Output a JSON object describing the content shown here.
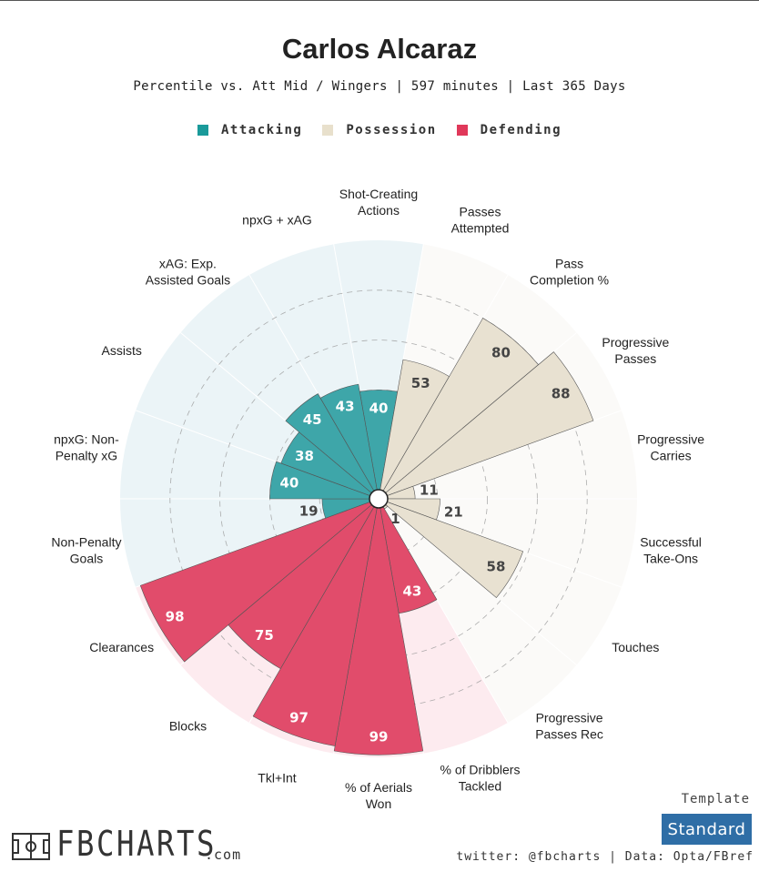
{
  "header": {
    "title": "Carlos Alcaraz",
    "subtitle": "Percentile vs. Att Mid / Wingers | 597 minutes | Last 365 Days"
  },
  "legend": [
    {
      "label": "Attacking",
      "color": "#1a9a9a"
    },
    {
      "label": "Possession",
      "color": "#e8e0cc"
    },
    {
      "label": "Defending",
      "color": "#e0385a"
    }
  ],
  "chart_data": {
    "type": "polar_bar",
    "scale_max": 100,
    "grid_rings": [
      20,
      40,
      60,
      80,
      100
    ],
    "series": [
      {
        "category": "Shot-Creating Actions",
        "label_lines": [
          "Shot-Creating",
          "Actions"
        ],
        "value": 40,
        "group": "Attacking"
      },
      {
        "category": "Passes Attempted",
        "label_lines": [
          "Passes",
          "Attempted"
        ],
        "value": 53,
        "group": "Possession"
      },
      {
        "category": "Pass Completion %",
        "label_lines": [
          "Pass",
          "Completion %"
        ],
        "value": 80,
        "group": "Possession"
      },
      {
        "category": "Progressive Passes",
        "label_lines": [
          "Progressive",
          "Passes"
        ],
        "value": 88,
        "group": "Possession"
      },
      {
        "category": "Progressive Carries",
        "label_lines": [
          "Progressive",
          "Carries"
        ],
        "value": 11,
        "group": "Possession"
      },
      {
        "category": "Successful Take-Ons",
        "label_lines": [
          "Successful",
          "Take-Ons"
        ],
        "value": 21,
        "group": "Possession"
      },
      {
        "category": "Touches",
        "label_lines": [
          "Touches"
        ],
        "value": 58,
        "group": "Possession"
      },
      {
        "category": "Progressive Passes Rec",
        "label_lines": [
          "Progressive",
          "Passes Rec"
        ],
        "value": 1,
        "group": "Possession"
      },
      {
        "category": "% of Dribblers Tackled",
        "label_lines": [
          "% of Dribblers",
          "Tackled"
        ],
        "value": 43,
        "group": "Defending"
      },
      {
        "category": "% of Aerials Won",
        "label_lines": [
          "% of Aerials",
          "Won"
        ],
        "value": 99,
        "group": "Defending"
      },
      {
        "category": "Tkl+Int",
        "label_lines": [
          "Tkl+Int"
        ],
        "value": 97,
        "group": "Defending"
      },
      {
        "category": "Blocks",
        "label_lines": [
          "Blocks"
        ],
        "value": 75,
        "group": "Defending"
      },
      {
        "category": "Clearances",
        "label_lines": [
          "Clearances"
        ],
        "value": 98,
        "group": "Defending"
      },
      {
        "category": "Non-Penalty Goals",
        "label_lines": [
          "Non-Penalty",
          "Goals"
        ],
        "value": 19,
        "group": "Attacking"
      },
      {
        "category": "npxG: Non-Penalty xG",
        "label_lines": [
          "npxG: Non-",
          "Penalty xG"
        ],
        "value": 40,
        "group": "Attacking"
      },
      {
        "category": "Assists",
        "label_lines": [
          "Assists"
        ],
        "value": 38,
        "group": "Attacking"
      },
      {
        "category": "xAG: Exp. Assisted Goals",
        "label_lines": [
          "xAG: Exp.",
          "Assisted Goals"
        ],
        "value": 45,
        "group": "Attacking"
      },
      {
        "category": "npxG + xAG",
        "label_lines": [
          "npxG + xAG"
        ],
        "value": 43,
        "group": "Attacking"
      }
    ]
  },
  "group_colors": {
    "Attacking": {
      "bar": "#3ea6a9",
      "bg": "#ebf4f7",
      "value_text": "#ffffff"
    },
    "Possession": {
      "bar": "#e8e1d1",
      "bg": "#fbfaf8",
      "value_text": "#444444"
    },
    "Defending": {
      "bar": "#e14c6b",
      "bg": "#fdebef",
      "value_text": "#ffffff"
    }
  },
  "logo": {
    "brand": "FBCHARTS",
    "domain": ".com"
  },
  "template": {
    "label": "Template",
    "value": "Standard"
  },
  "credits": "twitter: @fbcharts | Data: Opta/FBref"
}
